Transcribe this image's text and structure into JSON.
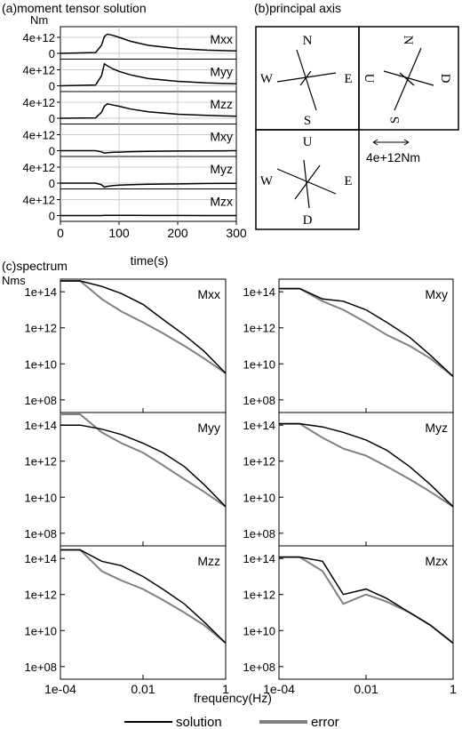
{
  "panel_a": {
    "title": "(a)moment tensor solution",
    "unit": "Nm",
    "xlabel": "time(s)",
    "ytick_top": "4e+12",
    "ytick_zero": "0",
    "xticks": [
      "0",
      "100",
      "200",
      "300"
    ]
  },
  "panel_b": {
    "title": "(b)principal axis",
    "scale_label": "4e+12Nm",
    "boxes": [
      {
        "top": "N",
        "left": "W",
        "right": "E",
        "bottom": "S"
      },
      {
        "top": "N",
        "left": "U",
        "right": "D",
        "bottom": "S"
      },
      {
        "top": "U",
        "left": "W",
        "right": "E",
        "bottom": "D"
      }
    ]
  },
  "panel_c": {
    "title": "(c)spectrum",
    "unit": "Nms",
    "xlabel": "frequency(Hz)",
    "yticks": [
      "1e+14",
      "1e+12",
      "1e+10",
      "1e+08"
    ],
    "xticks": [
      "1e-04",
      "0.01",
      "1"
    ]
  },
  "legend": {
    "solution": "solution",
    "error": "error"
  },
  "colors": {
    "solution": "#000000",
    "error": "#808080",
    "grid": "#cccccc"
  },
  "chart_data": [
    {
      "type": "line",
      "title": "(a)moment tensor solution",
      "xlabel": "time(s)",
      "ylabel": "Nm",
      "xlim": [
        0,
        300
      ],
      "ylim": [
        -1000000000000.0,
        6000000000000.0
      ],
      "x": [
        0,
        60,
        70,
        75,
        80,
        90,
        100,
        120,
        150,
        200,
        250,
        300
      ],
      "series": [
        {
          "name": "Mxx",
          "values": [
            0,
            200000000000.0,
            2000000000000.0,
            4200000000000.0,
            4800000000000.0,
            4500000000000.0,
            4000000000000.0,
            3000000000000.0,
            2000000000000.0,
            1200000000000.0,
            800000000000.0,
            600000000000.0
          ]
        },
        {
          "name": "Myy",
          "values": [
            0,
            200000000000.0,
            2500000000000.0,
            5500000000000.0,
            5000000000000.0,
            4200000000000.0,
            3600000000000.0,
            2700000000000.0,
            1800000000000.0,
            1100000000000.0,
            700000000000.0,
            500000000000.0
          ]
        },
        {
          "name": "Mzz",
          "values": [
            0,
            100000000000.0,
            1500000000000.0,
            3000000000000.0,
            3600000000000.0,
            3300000000000.0,
            3000000000000.0,
            2300000000000.0,
            1600000000000.0,
            1000000000000.0,
            700000000000.0,
            500000000000.0
          ]
        },
        {
          "name": "Mxy",
          "values": [
            0,
            0,
            -300000000000.0,
            -600000000000.0,
            -500000000000.0,
            -400000000000.0,
            -350000000000.0,
            -250000000000.0,
            -150000000000.0,
            -100000000000.0,
            -50000000000.0,
            0
          ]
        },
        {
          "name": "Myz",
          "values": [
            0,
            0,
            -400000000000.0,
            -1000000000000.0,
            -800000000000.0,
            -600000000000.0,
            -500000000000.0,
            -400000000000.0,
            -300000000000.0,
            -200000000000.0,
            -100000000000.0,
            -50000000000.0
          ]
        },
        {
          "name": "Mzx",
          "values": [
            0,
            0,
            0,
            50000000000.0,
            50000000000.0,
            50000000000.0,
            50000000000.0,
            40000000000.0,
            30000000000.0,
            20000000000.0,
            10000000000.0,
            0
          ]
        }
      ]
    },
    {
      "type": "line",
      "title": "(c)spectrum",
      "xlabel": "frequency(Hz)",
      "ylabel": "Nms",
      "xscale": "log",
      "yscale": "log",
      "xlim": [
        0.0001,
        1
      ],
      "ylim": [
        10000000.0,
        1000000000000000.0
      ],
      "x": [
        0.0001,
        0.0003,
        0.001,
        0.003,
        0.01,
        0.03,
        0.1,
        0.3,
        1
      ],
      "panels": [
        {
          "name": "Mxx",
          "series": [
            {
              "name": "solution",
              "values": [
                400000000000000.0,
                400000000000000.0,
                200000000000000.0,
                80000000000000.0,
                20000000000000.0,
                3000000000000.0,
                400000000000.0,
                50000000000.0,
                3000000000.0
              ]
            },
            {
              "name": "error",
              "values": [
                400000000000000.0,
                400000000000000.0,
                40000000000000.0,
                8000000000000.0,
                2000000000000.0,
                500000000000.0,
                100000000000.0,
                20000000000.0,
                3000000000.0
              ]
            }
          ]
        },
        {
          "name": "Mxy",
          "series": [
            {
              "name": "solution",
              "values": [
                150000000000000.0,
                150000000000000.0,
                40000000000000.0,
                30000000000000.0,
                10000000000000.0,
                2000000000000.0,
                300000000000.0,
                30000000000.0,
                2000000000.0
              ]
            },
            {
              "name": "error",
              "values": [
                150000000000000.0,
                150000000000000.0,
                30000000000000.0,
                10000000000000.0,
                2000000000000.0,
                400000000000.0,
                100000000000.0,
                20000000000.0,
                2000000000.0
              ]
            }
          ]
        },
        {
          "name": "Myy",
          "series": [
            {
              "name": "solution",
              "values": [
                100000000000000.0,
                100000000000000.0,
                60000000000000.0,
                30000000000000.0,
                10000000000000.0,
                3000000000000.0,
                500000000000.0,
                50000000000.0,
                3000000000.0
              ]
            },
            {
              "name": "error",
              "values": [
                400000000000000.0,
                400000000000000.0,
                40000000000000.0,
                10000000000000.0,
                3000000000000.0,
                600000000000.0,
                100000000000.0,
                20000000000.0,
                3000000000.0
              ]
            }
          ]
        },
        {
          "name": "Myz",
          "series": [
            {
              "name": "solution",
              "values": [
                120000000000000.0,
                120000000000000.0,
                80000000000000.0,
                40000000000000.0,
                15000000000000.0,
                4000000000000.0,
                500000000000.0,
                50000000000.0,
                3000000000.0
              ]
            },
            {
              "name": "error",
              "values": [
                120000000000000.0,
                120000000000000.0,
                20000000000000.0,
                5000000000000.0,
                2000000000000.0,
                500000000000.0,
                100000000000.0,
                20000000000.0,
                3000000000.0
              ]
            }
          ]
        },
        {
          "name": "Mzz",
          "series": [
            {
              "name": "solution",
              "values": [
                300000000000000.0,
                300000000000000.0,
                70000000000000.0,
                40000000000000.0,
                10000000000000.0,
                2000000000000.0,
                300000000000.0,
                30000000000.0,
                2000000000.0
              ]
            },
            {
              "name": "error",
              "values": [
                300000000000000.0,
                300000000000000.0,
                20000000000000.0,
                6000000000000.0,
                2000000000000.0,
                500000000000.0,
                100000000000.0,
                20000000000.0,
                2000000000.0
              ]
            }
          ]
        },
        {
          "name": "Mzx",
          "series": [
            {
              "name": "solution",
              "values": [
                120000000000000.0,
                120000000000000.0,
                70000000000000.0,
                1000000000000.0,
                2000000000000.0,
                600000000000.0,
                100000000000.0,
                20000000000.0,
                2000000000.0
              ]
            },
            {
              "name": "error",
              "values": [
                120000000000000.0,
                120000000000000.0,
                20000000000000.0,
                300000000000.0,
                1000000000000.0,
                400000000000.0,
                100000000000.0,
                20000000000.0,
                2000000000.0
              ]
            }
          ]
        }
      ]
    }
  ]
}
